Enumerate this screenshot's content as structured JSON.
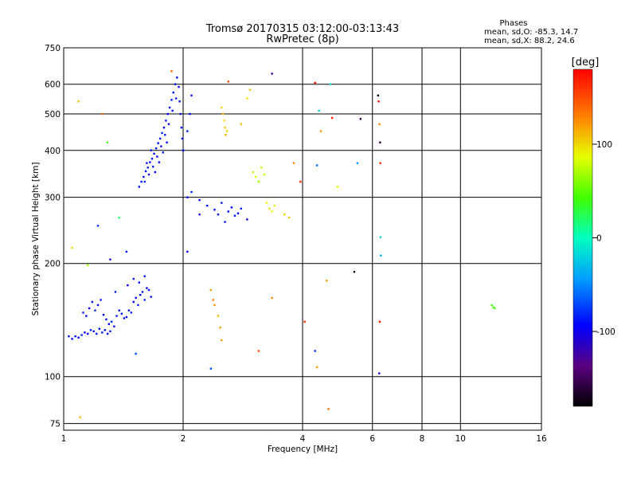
{
  "title": {
    "line1": "Tromsø 20170315 03:12:00-03:13:43",
    "line2": "RwPretec (8p)"
  },
  "stats": {
    "header": "Phases",
    "line_o": "mean, sd,O: -85.3, 14.7",
    "line_x": "mean, sd,X:  88.2, 24.6"
  },
  "colorbar": {
    "label": "[deg]",
    "range": [
      -180,
      180
    ],
    "ticks": [
      {
        "value": 100,
        "label": "100"
      },
      {
        "value": 0,
        "label": "0"
      },
      {
        "value": -100,
        "label": "-100"
      }
    ]
  },
  "chart_data": {
    "type": "scatter",
    "xlabel": "Frequency [MHz]",
    "ylabel": "Stationary phase Virtual Height [km]",
    "xscale": "log",
    "yscale": "log",
    "xlim": [
      1,
      16
    ],
    "ylim": [
      72,
      750
    ],
    "grid": true,
    "x_ticks": [
      {
        "value": 1,
        "label": "1"
      },
      {
        "value": 2,
        "label": "2"
      },
      {
        "value": 4,
        "label": "4"
      },
      {
        "value": 6,
        "label": "6"
      },
      {
        "value": 8,
        "label": "8"
      },
      {
        "value": 10,
        "label": "10"
      },
      {
        "value": 16,
        "label": "16"
      }
    ],
    "y_ticks": [
      {
        "value": 75,
        "label": "75"
      },
      {
        "value": 100,
        "label": "100"
      },
      {
        "value": 200,
        "label": "200"
      },
      {
        "value": 300,
        "label": "300"
      },
      {
        "value": 400,
        "label": "400"
      },
      {
        "value": 500,
        "label": "500"
      },
      {
        "value": 600,
        "label": "600"
      },
      {
        "value": 750,
        "label": "750"
      }
    ],
    "colorbar_label": "[deg]",
    "color_dimension": "phase (deg)",
    "series": [
      {
        "trace": "O-mode low layer",
        "points": [
          {
            "x": 1.03,
            "y": 128,
            "phase": -90
          },
          {
            "x": 1.05,
            "y": 126,
            "phase": -95
          },
          {
            "x": 1.07,
            "y": 128,
            "phase": -88
          },
          {
            "x": 1.09,
            "y": 127,
            "phase": -92
          },
          {
            "x": 1.11,
            "y": 129,
            "phase": -85
          },
          {
            "x": 1.13,
            "y": 131,
            "phase": -97
          },
          {
            "x": 1.15,
            "y": 130,
            "phase": -90
          },
          {
            "x": 1.17,
            "y": 133,
            "phase": -82
          },
          {
            "x": 1.19,
            "y": 132,
            "phase": -95
          },
          {
            "x": 1.21,
            "y": 130,
            "phase": -88
          },
          {
            "x": 1.23,
            "y": 134,
            "phase": -91
          },
          {
            "x": 1.25,
            "y": 131,
            "phase": -86
          },
          {
            "x": 1.27,
            "y": 133,
            "phase": -93
          },
          {
            "x": 1.29,
            "y": 130,
            "phase": -99
          },
          {
            "x": 1.31,
            "y": 132,
            "phase": -87
          },
          {
            "x": 1.12,
            "y": 148,
            "phase": -84
          },
          {
            "x": 1.14,
            "y": 145,
            "phase": -90
          },
          {
            "x": 1.16,
            "y": 152,
            "phase": -96
          },
          {
            "x": 1.18,
            "y": 158,
            "phase": -88
          },
          {
            "x": 1.2,
            "y": 150,
            "phase": -80
          },
          {
            "x": 1.22,
            "y": 155,
            "phase": -92
          },
          {
            "x": 1.24,
            "y": 160,
            "phase": -85
          },
          {
            "x": 1.26,
            "y": 146,
            "phase": -94
          },
          {
            "x": 1.28,
            "y": 142,
            "phase": -89
          },
          {
            "x": 1.3,
            "y": 138,
            "phase": -97
          },
          {
            "x": 1.32,
            "y": 140,
            "phase": -83
          },
          {
            "x": 1.34,
            "y": 136,
            "phase": -90
          },
          {
            "x": 1.36,
            "y": 145,
            "phase": -87
          },
          {
            "x": 1.38,
            "y": 150,
            "phase": -93
          },
          {
            "x": 1.4,
            "y": 147,
            "phase": -86
          },
          {
            "x": 1.42,
            "y": 143,
            "phase": -91
          },
          {
            "x": 1.44,
            "y": 144,
            "phase": -95
          },
          {
            "x": 1.46,
            "y": 150,
            "phase": -88
          },
          {
            "x": 1.48,
            "y": 148,
            "phase": -84
          },
          {
            "x": 1.5,
            "y": 158,
            "phase": -92
          },
          {
            "x": 1.52,
            "y": 162,
            "phase": -90
          },
          {
            "x": 1.54,
            "y": 155,
            "phase": -86
          },
          {
            "x": 1.56,
            "y": 165,
            "phase": -94
          },
          {
            "x": 1.58,
            "y": 168,
            "phase": -89
          },
          {
            "x": 1.6,
            "y": 160,
            "phase": -83
          },
          {
            "x": 1.62,
            "y": 172,
            "phase": -97
          },
          {
            "x": 1.64,
            "y": 170,
            "phase": -88
          },
          {
            "x": 1.66,
            "y": 163,
            "phase": -91
          },
          {
            "x": 1.45,
            "y": 175,
            "phase": -95
          },
          {
            "x": 1.5,
            "y": 182,
            "phase": -86
          },
          {
            "x": 1.55,
            "y": 178,
            "phase": -92
          },
          {
            "x": 1.6,
            "y": 185,
            "phase": -90
          },
          {
            "x": 1.35,
            "y": 168,
            "phase": -84
          }
        ]
      },
      {
        "trace": "O-mode F layer",
        "points": [
          {
            "x": 1.55,
            "y": 320,
            "phase": -92
          },
          {
            "x": 1.57,
            "y": 330,
            "phase": -87
          },
          {
            "x": 1.59,
            "y": 340,
            "phase": -95
          },
          {
            "x": 1.61,
            "y": 352,
            "phase": -89
          },
          {
            "x": 1.63,
            "y": 360,
            "phase": -84
          },
          {
            "x": 1.65,
            "y": 372,
            "phase": -93
          },
          {
            "x": 1.67,
            "y": 380,
            "phase": -88
          },
          {
            "x": 1.69,
            "y": 392,
            "phase": -91
          },
          {
            "x": 1.71,
            "y": 405,
            "phase": -86
          },
          {
            "x": 1.73,
            "y": 418,
            "phase": -94
          },
          {
            "x": 1.75,
            "y": 430,
            "phase": -90
          },
          {
            "x": 1.77,
            "y": 445,
            "phase": -83
          },
          {
            "x": 1.79,
            "y": 460,
            "phase": -92
          },
          {
            "x": 1.81,
            "y": 480,
            "phase": -87
          },
          {
            "x": 1.83,
            "y": 500,
            "phase": -95
          },
          {
            "x": 1.85,
            "y": 520,
            "phase": -89
          },
          {
            "x": 1.87,
            "y": 545,
            "phase": -84
          },
          {
            "x": 1.89,
            "y": 570,
            "phase": -93
          },
          {
            "x": 1.91,
            "y": 600,
            "phase": -88
          },
          {
            "x": 1.93,
            "y": 625,
            "phase": -91
          },
          {
            "x": 1.6,
            "y": 330,
            "phase": -80
          },
          {
            "x": 1.64,
            "y": 345,
            "phase": -97
          },
          {
            "x": 1.68,
            "y": 362,
            "phase": -85
          },
          {
            "x": 1.72,
            "y": 385,
            "phase": -90
          },
          {
            "x": 1.76,
            "y": 410,
            "phase": -93
          },
          {
            "x": 1.8,
            "y": 440,
            "phase": -86
          },
          {
            "x": 1.84,
            "y": 470,
            "phase": -92
          },
          {
            "x": 1.88,
            "y": 510,
            "phase": -88
          },
          {
            "x": 1.92,
            "y": 550,
            "phase": -84
          },
          {
            "x": 1.95,
            "y": 590,
            "phase": -95
          },
          {
            "x": 1.96,
            "y": 540,
            "phase": -89
          },
          {
            "x": 1.97,
            "y": 500,
            "phase": -91
          },
          {
            "x": 1.98,
            "y": 460,
            "phase": -86
          },
          {
            "x": 1.99,
            "y": 430,
            "phase": -93
          },
          {
            "x": 1.62,
            "y": 370,
            "phase": -88
          },
          {
            "x": 1.66,
            "y": 400,
            "phase": -82
          },
          {
            "x": 1.7,
            "y": 350,
            "phase": -96
          },
          {
            "x": 1.74,
            "y": 372,
            "phase": -90
          },
          {
            "x": 1.78,
            "y": 395,
            "phase": -85
          },
          {
            "x": 1.82,
            "y": 420,
            "phase": -94
          }
        ]
      },
      {
        "trace": "second hop / scattered returns",
        "points": [
          {
            "x": 2.05,
            "y": 300,
            "phase": -90
          },
          {
            "x": 2.1,
            "y": 310,
            "phase": -85
          },
          {
            "x": 2.2,
            "y": 295,
            "phase": -95
          },
          {
            "x": 2.3,
            "y": 285,
            "phase": -88
          },
          {
            "x": 2.4,
            "y": 278,
            "phase": -92
          },
          {
            "x": 2.5,
            "y": 290,
            "phase": -86
          },
          {
            "x": 2.6,
            "y": 275,
            "phase": -93
          },
          {
            "x": 2.7,
            "y": 268,
            "phase": -89
          },
          {
            "x": 2.8,
            "y": 280,
            "phase": -84
          },
          {
            "x": 2.9,
            "y": 262,
            "phase": -96
          },
          {
            "x": 2.45,
            "y": 270,
            "phase": -90
          },
          {
            "x": 2.55,
            "y": 258,
            "phase": -87
          },
          {
            "x": 2.65,
            "y": 282,
            "phase": -93
          },
          {
            "x": 2.75,
            "y": 272,
            "phase": -88
          },
          {
            "x": 2.0,
            "y": 400,
            "phase": -91
          },
          {
            "x": 2.05,
            "y": 450,
            "phase": -86
          },
          {
            "x": 2.08,
            "y": 500,
            "phase": -94
          },
          {
            "x": 2.1,
            "y": 560,
            "phase": -89
          }
        ]
      },
      {
        "trace": "X-mode",
        "points": [
          {
            "x": 2.5,
            "y": 520,
            "phase": 100
          },
          {
            "x": 2.52,
            "y": 500,
            "phase": 110
          },
          {
            "x": 2.54,
            "y": 480,
            "phase": 95
          },
          {
            "x": 2.55,
            "y": 460,
            "phase": 105
          },
          {
            "x": 2.56,
            "y": 440,
            "phase": 115
          },
          {
            "x": 2.58,
            "y": 450,
            "phase": 100
          },
          {
            "x": 2.8,
            "y": 470,
            "phase": 110
          },
          {
            "x": 2.9,
            "y": 550,
            "phase": 95
          },
          {
            "x": 2.95,
            "y": 580,
            "phase": 108
          },
          {
            "x": 3.0,
            "y": 350,
            "phase": 70
          },
          {
            "x": 3.05,
            "y": 340,
            "phase": 80
          },
          {
            "x": 3.1,
            "y": 330,
            "phase": 65
          },
          {
            "x": 3.15,
            "y": 360,
            "phase": 75
          },
          {
            "x": 3.2,
            "y": 345,
            "phase": 72
          },
          {
            "x": 3.25,
            "y": 290,
            "phase": 90
          },
          {
            "x": 3.3,
            "y": 280,
            "phase": 95
          },
          {
            "x": 3.35,
            "y": 275,
            "phase": 85
          },
          {
            "x": 3.4,
            "y": 285,
            "phase": 92
          },
          {
            "x": 3.6,
            "y": 270,
            "phase": 100
          },
          {
            "x": 3.7,
            "y": 265,
            "phase": 105
          },
          {
            "x": 2.35,
            "y": 170,
            "phase": 120
          },
          {
            "x": 2.38,
            "y": 160,
            "phase": 130
          },
          {
            "x": 2.4,
            "y": 155,
            "phase": 125
          },
          {
            "x": 2.45,
            "y": 145,
            "phase": 110
          },
          {
            "x": 2.48,
            "y": 135,
            "phase": 115
          },
          {
            "x": 2.5,
            "y": 125,
            "phase": 120
          }
        ]
      },
      {
        "trace": "isolated returns",
        "points": [
          {
            "x": 1.09,
            "y": 540,
            "phase": 110
          },
          {
            "x": 1.25,
            "y": 500,
            "phase": 140
          },
          {
            "x": 1.38,
            "y": 265,
            "phase": 20
          },
          {
            "x": 1.29,
            "y": 420,
            "phase": 40
          },
          {
            "x": 1.05,
            "y": 220,
            "phase": 100
          },
          {
            "x": 1.1,
            "y": 78,
            "phase": 110
          },
          {
            "x": 1.15,
            "y": 198,
            "phase": 70
          },
          {
            "x": 1.22,
            "y": 252,
            "phase": -80
          },
          {
            "x": 1.31,
            "y": 205,
            "phase": -110
          },
          {
            "x": 1.44,
            "y": 215,
            "phase": -95
          },
          {
            "x": 1.52,
            "y": 115,
            "phase": -70
          },
          {
            "x": 1.87,
            "y": 650,
            "phase": 140
          },
          {
            "x": 2.6,
            "y": 610,
            "phase": 150
          },
          {
            "x": 3.35,
            "y": 640,
            "phase": -120
          },
          {
            "x": 3.8,
            "y": 370,
            "phase": 130
          },
          {
            "x": 3.95,
            "y": 330,
            "phase": 160
          },
          {
            "x": 4.3,
            "y": 605,
            "phase": 175
          },
          {
            "x": 4.35,
            "y": 365,
            "phase": -60
          },
          {
            "x": 4.4,
            "y": 510,
            "phase": -20
          },
          {
            "x": 4.45,
            "y": 450,
            "phase": 120
          },
          {
            "x": 4.7,
            "y": 600,
            "phase": -10
          },
          {
            "x": 4.75,
            "y": 488,
            "phase": 170
          },
          {
            "x": 4.9,
            "y": 320,
            "phase": 90
          },
          {
            "x": 5.4,
            "y": 190,
            "phase": -170
          },
          {
            "x": 5.6,
            "y": 485,
            "phase": -150
          },
          {
            "x": 5.5,
            "y": 370,
            "phase": -50
          },
          {
            "x": 6.2,
            "y": 560,
            "phase": -180
          },
          {
            "x": 6.22,
            "y": 540,
            "phase": 175
          },
          {
            "x": 6.25,
            "y": 470,
            "phase": 130
          },
          {
            "x": 6.27,
            "y": 420,
            "phase": -160
          },
          {
            "x": 6.28,
            "y": 370,
            "phase": 165
          },
          {
            "x": 6.29,
            "y": 235,
            "phase": -20
          },
          {
            "x": 6.3,
            "y": 210,
            "phase": -40
          },
          {
            "x": 6.26,
            "y": 140,
            "phase": 170
          },
          {
            "x": 6.24,
            "y": 102,
            "phase": -100
          },
          {
            "x": 4.05,
            "y": 140,
            "phase": 160
          },
          {
            "x": 4.3,
            "y": 117,
            "phase": -80
          },
          {
            "x": 4.35,
            "y": 106,
            "phase": 120
          },
          {
            "x": 4.65,
            "y": 82,
            "phase": 140
          },
          {
            "x": 4.6,
            "y": 180,
            "phase": 120
          },
          {
            "x": 3.35,
            "y": 162,
            "phase": 130
          },
          {
            "x": 3.1,
            "y": 117,
            "phase": 150
          },
          {
            "x": 2.35,
            "y": 105,
            "phase": -70
          },
          {
            "x": 12.0,
            "y": 155,
            "phase": 45
          },
          {
            "x": 12.1,
            "y": 153,
            "phase": 50
          },
          {
            "x": 12.2,
            "y": 152,
            "phase": 40
          },
          {
            "x": 2.05,
            "y": 215,
            "phase": -95
          },
          {
            "x": 2.2,
            "y": 270,
            "phase": -100
          }
        ]
      }
    ]
  }
}
